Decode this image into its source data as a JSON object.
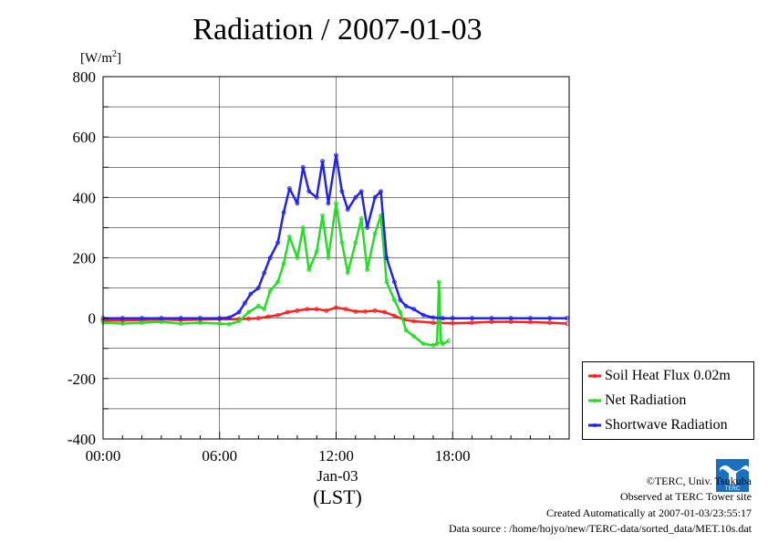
{
  "header": {
    "title": "Radiation / 2007-01-03",
    "y_unit": "[W/m",
    "y_unit_sup": "2",
    "y_unit_close": "]"
  },
  "axis": {
    "date_label": "Jan-03",
    "lst_label": "(LST)"
  },
  "legend": {
    "items": [
      {
        "label": "Soil Heat Flux 0.02m",
        "color": "#ff2020"
      },
      {
        "label": "Net Radiation",
        "color": "#20e020"
      },
      {
        "label": "Shortwave Radiation",
        "color": "#2020ff"
      }
    ]
  },
  "footer": {
    "copyright": "©TERC, Univ. Tsukuba",
    "observed": "Observed at TERC Tower site",
    "created": "Created Automatically at 2007-01-03/23:55:17",
    "source": "Data source : /home/hojyo/new/TERC-data/sorted_data/MET.10s.dat"
  },
  "logo": {
    "text": "TERC",
    "color": "#1a6fc0"
  },
  "chart_data": {
    "type": "line",
    "title": "Radiation / 2007-01-03",
    "xlabel": "(LST)",
    "ylabel": "[W/m2]",
    "x_unit": "hour of day (LST)",
    "xlim": [
      0,
      24
    ],
    "ylim": [
      -400,
      800
    ],
    "yticks": [
      -400,
      -200,
      0,
      200,
      400,
      600,
      800
    ],
    "xticks": [
      0,
      6,
      12,
      18
    ],
    "xtick_labels": [
      "00:00",
      "06:00",
      "12:00",
      "18:00"
    ],
    "grid": true,
    "legend_position": "bottom-right",
    "series": [
      {
        "name": "Soil Heat Flux 0.02m",
        "color": "#ff2020",
        "x": [
          0,
          1,
          2,
          3,
          4,
          5,
          6,
          7,
          7.5,
          8,
          8.5,
          9,
          9.5,
          10,
          10.5,
          11,
          11.5,
          12,
          12.5,
          13,
          13.5,
          14,
          14.5,
          15,
          15.5,
          16,
          17,
          18,
          19,
          20,
          21,
          22,
          23,
          23.9
        ],
        "y": [
          -8,
          -8,
          -6,
          -4,
          -6,
          -5,
          -3,
          -3,
          -2,
          0,
          5,
          10,
          20,
          25,
          30,
          30,
          25,
          35,
          30,
          22,
          22,
          25,
          20,
          8,
          -5,
          -10,
          -15,
          -17,
          -15,
          -12,
          -12,
          -13,
          -15,
          -18
        ]
      },
      {
        "name": "Net Radiation",
        "color": "#20e020",
        "x": [
          0,
          1,
          2,
          3,
          4,
          5,
          6,
          6.5,
          7,
          7.5,
          8,
          8.3,
          8.6,
          9,
          9.3,
          9.6,
          10,
          10.3,
          10.6,
          11,
          11.3,
          11.6,
          12,
          12.3,
          12.6,
          13,
          13.3,
          13.6,
          14,
          14.3,
          14.6,
          15,
          15.3,
          15.6,
          16,
          16.5,
          17,
          17.2,
          17.3,
          17.4,
          17.5,
          17.8
        ],
        "y": [
          -15,
          -18,
          -15,
          -12,
          -18,
          -15,
          -18,
          -20,
          -10,
          20,
          40,
          30,
          90,
          120,
          180,
          270,
          200,
          300,
          160,
          220,
          340,
          200,
          380,
          250,
          150,
          250,
          330,
          160,
          280,
          340,
          120,
          60,
          20,
          -40,
          -60,
          -85,
          -90,
          -85,
          120,
          -80,
          -85,
          -75
        ]
      },
      {
        "name": "Shortwave Radiation",
        "color": "#2020ff",
        "x": [
          0,
          1,
          2,
          3,
          4,
          5,
          6,
          6.5,
          7,
          7.3,
          7.6,
          8,
          8.3,
          8.6,
          9,
          9.3,
          9.6,
          10,
          10.3,
          10.6,
          11,
          11.3,
          11.6,
          12,
          12.3,
          12.6,
          13,
          13.3,
          13.6,
          14,
          14.3,
          14.6,
          15,
          15.3,
          15.6,
          16,
          16.5,
          17,
          17.5,
          18,
          19,
          20,
          21,
          22,
          23,
          23.9
        ],
        "y": [
          0,
          0,
          0,
          0,
          0,
          0,
          0,
          2,
          20,
          50,
          80,
          100,
          150,
          200,
          250,
          350,
          430,
          380,
          500,
          420,
          400,
          520,
          380,
          540,
          420,
          360,
          400,
          420,
          300,
          400,
          420,
          200,
          120,
          60,
          40,
          30,
          10,
          2,
          0,
          0,
          0,
          0,
          0,
          0,
          0,
          0
        ]
      }
    ]
  }
}
